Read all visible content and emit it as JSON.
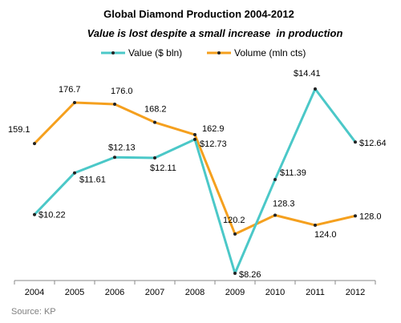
{
  "chart_data": {
    "type": "line",
    "title": "Global Diamond Production 2004-2012",
    "subtitle": "Value is lost despite a small increase  in production",
    "source": "Source: KP",
    "categories": [
      "2004",
      "2005",
      "2006",
      "2007",
      "2008",
      "2009",
      "2010",
      "2011",
      "2012"
    ],
    "series": [
      {
        "name": "Value ($ bln)",
        "color": "#4BC8C8",
        "values": [
          10.22,
          11.61,
          12.13,
          12.11,
          12.73,
          8.26,
          11.39,
          14.41,
          12.64
        ],
        "labels": [
          "$10.22",
          "$11.61",
          "$12.13",
          "$12.11",
          "$12.73",
          "$8.26",
          "$11.39",
          "$14.41",
          "$12.64"
        ]
      },
      {
        "name": "Volume (mln cts)",
        "color": "#F5A01E",
        "values": [
          159.1,
          176.7,
          176.0,
          168.2,
          162.9,
          120.2,
          128.3,
          124.0,
          128.0
        ],
        "labels": [
          "159.1",
          "176.7",
          "176.0",
          "168.2",
          "162.9",
          "120.2",
          "128.3",
          "124.0",
          "128.0"
        ]
      }
    ],
    "legend_position": "top",
    "grid": false
  }
}
